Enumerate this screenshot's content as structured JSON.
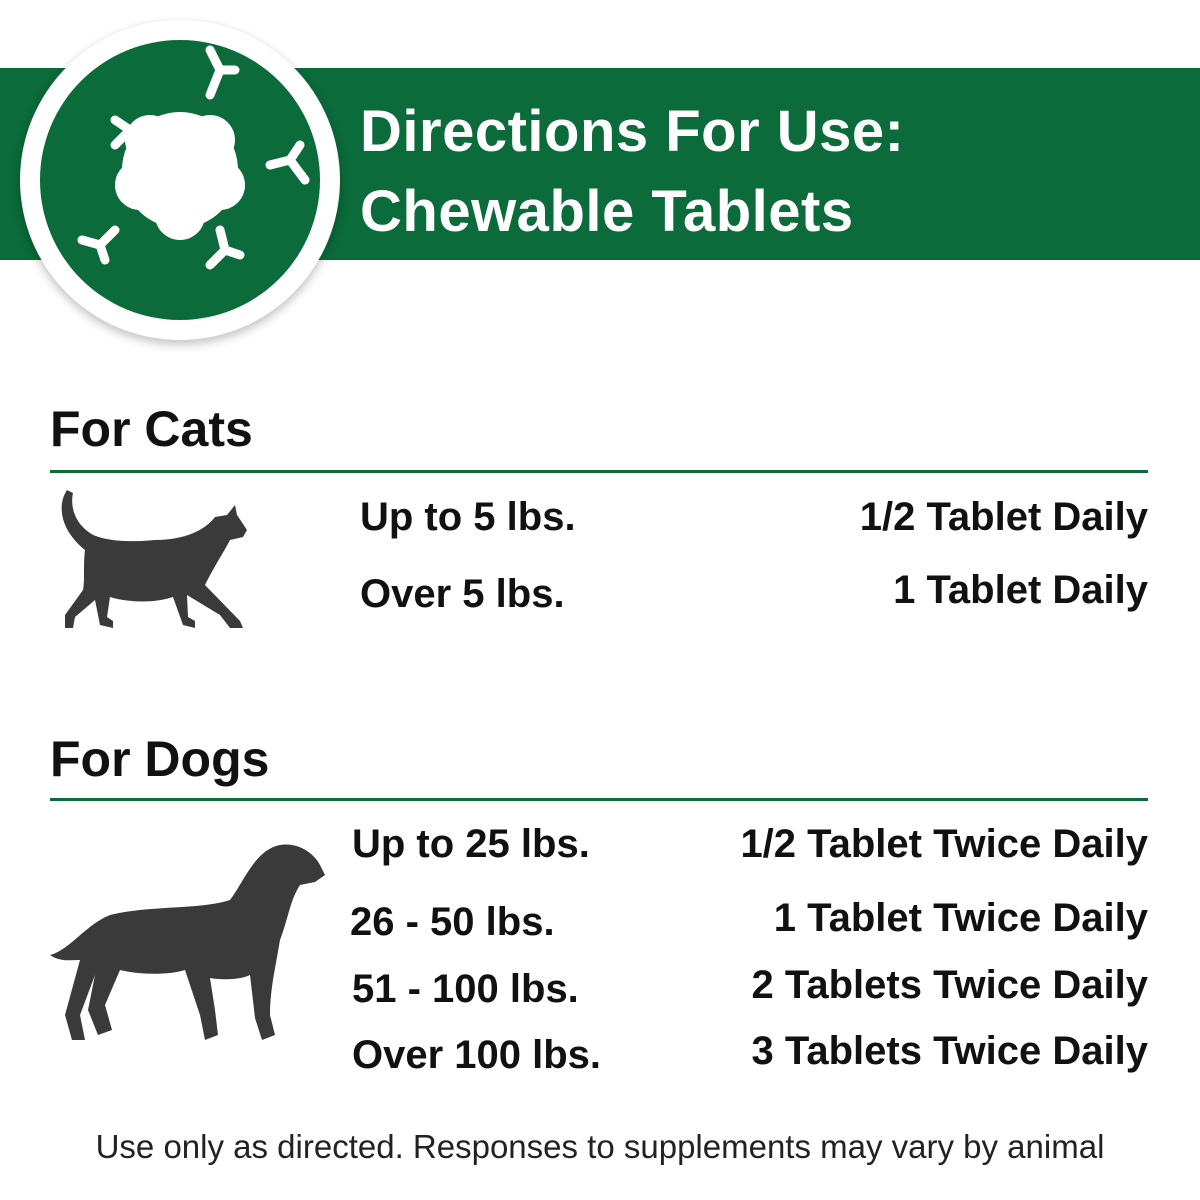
{
  "header": {
    "title_line1": "Directions For Use:",
    "title_line2": "Chewable Tablets",
    "brand_color": "#0b6b3a",
    "badge_icon": "supplement-molecule-icon"
  },
  "cats": {
    "heading": "For Cats",
    "icon": "cat-silhouette-icon",
    "rows": [
      {
        "weight": "Up to 5 lbs.",
        "dose": "1/2 Tablet Daily"
      },
      {
        "weight": "Over 5 lbs.",
        "dose": "1 Tablet Daily"
      }
    ]
  },
  "dogs": {
    "heading": "For Dogs",
    "icon": "dog-silhouette-icon",
    "rows": [
      {
        "weight": "Up to 25 lbs.",
        "dose": "1/2 Tablet Twice Daily"
      },
      {
        "weight": "26 - 50 lbs.",
        "dose": "1 Tablet Twice Daily"
      },
      {
        "weight": "51 - 100 lbs.",
        "dose": "2 Tablets Twice Daily"
      },
      {
        "weight": "Over 100 lbs.",
        "dose": "3 Tablets Twice Daily"
      }
    ]
  },
  "footer": "Use only as directed. Responses to supplements may vary by animal"
}
